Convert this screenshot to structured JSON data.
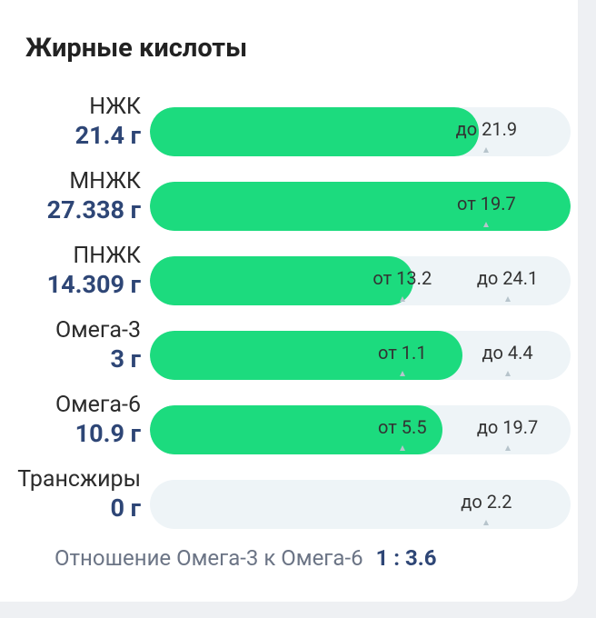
{
  "title": "Жирные кислоты",
  "rows": [
    {
      "name": "НЖК",
      "value": {
        "value": 21.4,
        "label": "21.4 г"
      },
      "max": {
        "value": 21.9,
        "label": "до 21.9"
      }
    },
    {
      "name": "МНЖК",
      "value": {
        "value": 27.338,
        "label": "27.338 г"
      },
      "min": {
        "value": 19.7,
        "label": "от 19.7"
      }
    },
    {
      "name": "ПНЖК",
      "value": {
        "value": 14.309,
        "label": "14.309 г"
      },
      "min": {
        "value": 13.2,
        "label": "от 13.2"
      },
      "max": {
        "value": 24.1,
        "label": "до 24.1"
      }
    },
    {
      "name": "Омега-3",
      "value": {
        "value": 3,
        "label": "3 г"
      },
      "min": {
        "value": 1.1,
        "label": "от 1.1"
      },
      "max": {
        "value": 4.4,
        "label": "до 4.4"
      }
    },
    {
      "name": "Омега-6",
      "value": {
        "value": 10.9,
        "label": "10.9 г"
      },
      "min": {
        "value": 5.5,
        "label": "от 5.5"
      },
      "max": {
        "value": 19.7,
        "label": "до 19.7"
      }
    },
    {
      "name": "Трансжиры",
      "value": {
        "value": 0,
        "label": "0 г"
      },
      "max": {
        "value": 2.2,
        "label": "до 2.2"
      }
    }
  ],
  "ratio": {
    "label": "Отношение Омега-3 к Омега-6",
    "value": "1 : 3.6"
  }
}
